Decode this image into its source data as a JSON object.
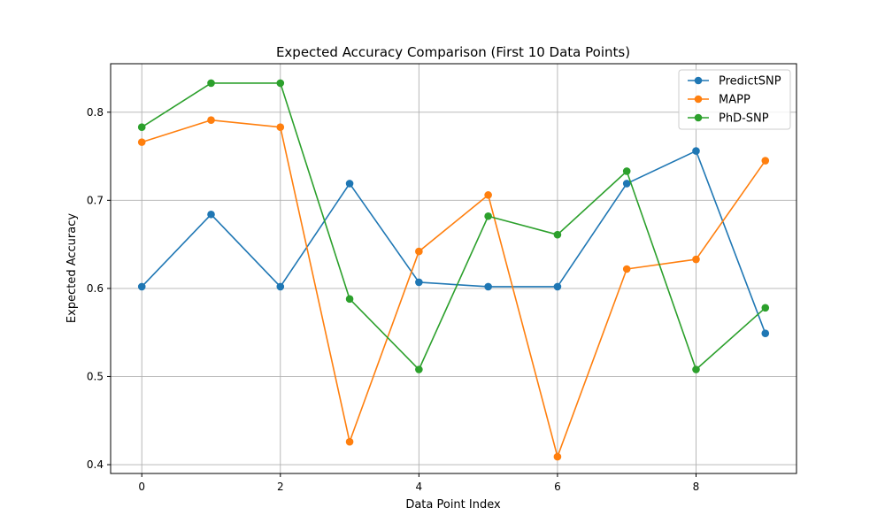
{
  "chart_data": {
    "type": "line",
    "title": "Expected Accuracy Comparison (First 10 Data Points)",
    "xlabel": "Data Point Index",
    "ylabel": "Expected Accuracy",
    "x": [
      0,
      1,
      2,
      3,
      4,
      5,
      6,
      7,
      8,
      9
    ],
    "xlim": [
      -0.45,
      9.45
    ],
    "ylim": [
      0.39,
      0.855
    ],
    "xticks": [
      0,
      2,
      4,
      6,
      8
    ],
    "xtick_labels": [
      "0",
      "2",
      "4",
      "6",
      "8"
    ],
    "yticks": [
      0.4,
      0.5,
      0.6,
      0.7,
      0.8
    ],
    "ytick_labels": [
      "0.4",
      "0.5",
      "0.6",
      "0.7",
      "0.8"
    ],
    "grid": true,
    "legend_position": "top-right",
    "series": [
      {
        "name": "PredictSNP",
        "color": "#1f77b4",
        "marker": "circle",
        "values": [
          0.602,
          0.684,
          0.602,
          0.719,
          0.607,
          0.602,
          0.602,
          0.719,
          0.756,
          0.549
        ]
      },
      {
        "name": "MAPP",
        "color": "#ff7f0e",
        "marker": "circle",
        "values": [
          0.766,
          0.791,
          0.783,
          0.426,
          0.642,
          0.706,
          0.409,
          0.622,
          0.633,
          0.745
        ]
      },
      {
        "name": "PhD-SNP",
        "color": "#2ca02c",
        "marker": "circle",
        "values": [
          0.783,
          0.833,
          0.833,
          0.588,
          0.508,
          0.682,
          0.661,
          0.733,
          0.508,
          0.578
        ]
      }
    ]
  }
}
